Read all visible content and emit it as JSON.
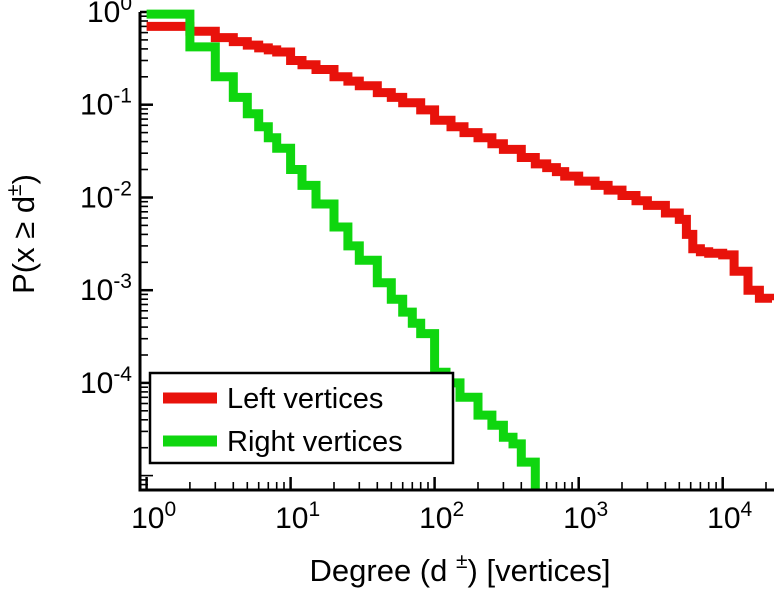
{
  "figure": {
    "background": "#ffffff",
    "axis_color": "#000000"
  },
  "chart_data": {
    "type": "line",
    "line_style": "steps",
    "title": "",
    "xscale": "log",
    "yscale": "log",
    "grid": false,
    "xlim": [
      0.9,
      22000
    ],
    "ylim": [
      7e-06,
      1
    ],
    "xlabel_pre": "Degree (d ",
    "xlabel_sup": "±",
    "xlabel_post": ") [vertices]",
    "ylabel_pre": "P(x ≥ d",
    "ylabel_sup": "±",
    "ylabel_post": ")",
    "tick_base": "10",
    "x_major_ticks": [
      1,
      10,
      100,
      1000,
      10000
    ],
    "x_tick_exponents": [
      "0",
      "1",
      "2",
      "3",
      "4"
    ],
    "y_major_ticks": [
      1,
      0.1,
      0.01,
      0.001,
      0.0001
    ],
    "y_tick_exponents": [
      "0",
      "-1",
      "-2",
      "-3",
      "-4"
    ],
    "legend_position": "lower left",
    "series": [
      {
        "name": "Left vertices",
        "color": "#e8120b",
        "points": [
          [
            1,
            0.7
          ],
          [
            2,
            0.62
          ],
          [
            3,
            0.53
          ],
          [
            4,
            0.48
          ],
          [
            5,
            0.44
          ],
          [
            6,
            0.41
          ],
          [
            7,
            0.39
          ],
          [
            8,
            0.37
          ],
          [
            10,
            0.3
          ],
          [
            12,
            0.27
          ],
          [
            15,
            0.24
          ],
          [
            20,
            0.2
          ],
          [
            25,
            0.18
          ],
          [
            30,
            0.16
          ],
          [
            40,
            0.135
          ],
          [
            50,
            0.12
          ],
          [
            60,
            0.105
          ],
          [
            80,
            0.088
          ],
          [
            100,
            0.068
          ],
          [
            130,
            0.058
          ],
          [
            160,
            0.05
          ],
          [
            200,
            0.044
          ],
          [
            250,
            0.038
          ],
          [
            300,
            0.033
          ],
          [
            400,
            0.027
          ],
          [
            500,
            0.023
          ],
          [
            600,
            0.021
          ],
          [
            700,
            0.019
          ],
          [
            800,
            0.017
          ],
          [
            1000,
            0.015
          ],
          [
            1300,
            0.0135
          ],
          [
            1600,
            0.012
          ],
          [
            2000,
            0.0105
          ],
          [
            2500,
            0.0092
          ],
          [
            3000,
            0.0082
          ],
          [
            4000,
            0.0068
          ],
          [
            5000,
            0.0058
          ],
          [
            5600,
            0.004
          ],
          [
            6200,
            0.0028
          ],
          [
            7000,
            0.0026
          ],
          [
            8000,
            0.0025
          ],
          [
            10000,
            0.0024
          ],
          [
            12000,
            0.0016
          ],
          [
            15000,
            0.001
          ],
          [
            18000,
            0.00082
          ],
          [
            22000,
            0.00078
          ]
        ]
      },
      {
        "name": "Right vertices",
        "color": "#0fd60f",
        "points": [
          [
            1,
            0.95
          ],
          [
            2,
            0.42
          ],
          [
            3,
            0.2
          ],
          [
            4,
            0.12
          ],
          [
            5,
            0.08
          ],
          [
            6,
            0.058
          ],
          [
            7,
            0.044
          ],
          [
            8,
            0.034
          ],
          [
            10,
            0.02
          ],
          [
            12,
            0.0135
          ],
          [
            15,
            0.0085
          ],
          [
            20,
            0.0048
          ],
          [
            25,
            0.003
          ],
          [
            30,
            0.0021
          ],
          [
            40,
            0.0012
          ],
          [
            50,
            0.0008
          ],
          [
            60,
            0.00058
          ],
          [
            70,
            0.00044
          ],
          [
            80,
            0.00034
          ],
          [
            100,
            0.00013
          ],
          [
            120,
            0.0001
          ],
          [
            150,
            7e-05
          ],
          [
            200,
            4.5e-05
          ],
          [
            250,
            3.5e-05
          ],
          [
            300,
            2.6e-05
          ],
          [
            350,
            2.2e-05
          ],
          [
            400,
            1.4e-05
          ],
          [
            500,
            7e-06
          ]
        ]
      }
    ]
  }
}
